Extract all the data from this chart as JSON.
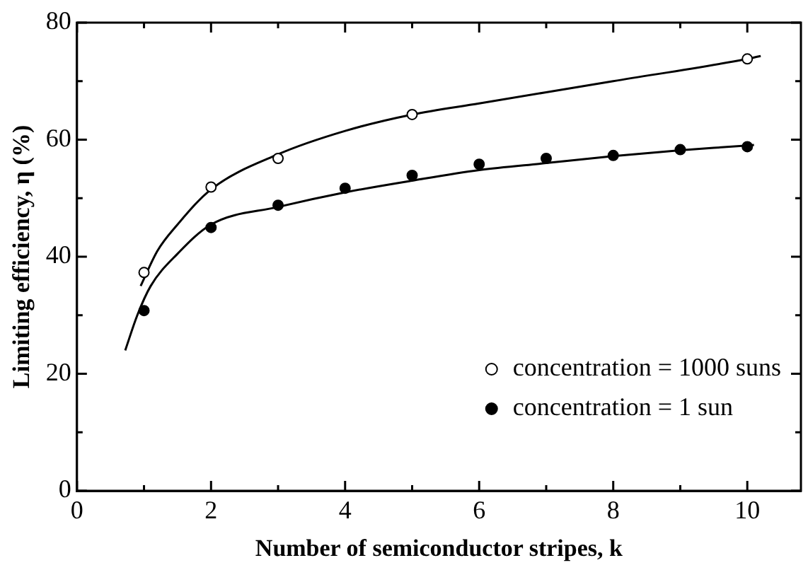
{
  "chart_data": {
    "type": "scatter",
    "xlabel": "Number of semiconductor stripes, k",
    "ylabel": "Limiting efficiency, η (%)",
    "xlim": [
      0,
      10.8
    ],
    "ylim": [
      0,
      80
    ],
    "xticks": [
      0,
      {
        "value": 1,
        "label": null
      },
      2,
      {
        "value": 3,
        "label": null
      },
      4,
      {
        "value": 5,
        "label": null
      },
      6,
      {
        "value": 7,
        "label": null
      },
      8,
      {
        "value": 9,
        "label": null
      },
      10
    ],
    "yticks": [
      0,
      {
        "value": 10,
        "label": null
      },
      20,
      {
        "value": 30,
        "label": null
      },
      40,
      {
        "value": 50,
        "label": null
      },
      60,
      {
        "value": 70,
        "label": null
      },
      80
    ],
    "marker": "circle",
    "legend": "bottom right",
    "grid": false,
    "series": [
      {
        "type": "line",
        "color": "#000000",
        "marker": "none",
        "x": [
          0.95,
          1.2,
          1.5,
          2,
          3,
          4,
          5,
          6,
          8,
          10,
          10.2
        ],
        "values": [
          35,
          41,
          45.5,
          51.5,
          57.5,
          61.5,
          64.3,
          66.2,
          70,
          73.8,
          74.3
        ]
      },
      {
        "type": "line",
        "color": "#000000",
        "marker": "none",
        "x": [
          0.72,
          0.9,
          1.1,
          1.5,
          2,
          3,
          4,
          5,
          6,
          7,
          8,
          9,
          10,
          10.1
        ],
        "values": [
          24,
          30,
          35,
          40.5,
          45.5,
          48.5,
          51,
          53,
          54.8,
          56,
          57.2,
          58.2,
          59,
          59.1
        ]
      },
      {
        "name": "concentration = 1000 suns",
        "color": "#ffffff",
        "x": [
          1,
          2,
          3,
          5,
          10
        ],
        "values": [
          37.3,
          51.9,
          56.8,
          64.3,
          73.8
        ]
      },
      {
        "name": "concentration = 1 sun",
        "color": "#000000",
        "x": [
          1,
          2,
          3,
          4,
          5,
          6,
          7,
          8,
          9,
          10
        ],
        "values": [
          30.8,
          45,
          48.8,
          51.7,
          53.9,
          55.8,
          56.8,
          57.3,
          58.3,
          58.8
        ]
      }
    ]
  }
}
